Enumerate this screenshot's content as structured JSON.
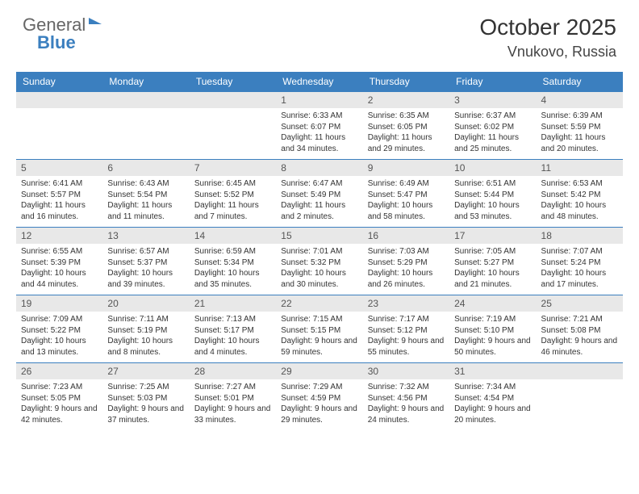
{
  "brand": {
    "part1": "General",
    "part2": "Blue"
  },
  "title": "October 2025",
  "location": "Vnukovo, Russia",
  "colors": {
    "header_bg": "#3b7fbf",
    "header_text": "#ffffff",
    "daynum_bg": "#e8e8e8",
    "row_divider": "#3b7fbf",
    "page_bg": "#ffffff",
    "body_text": "#333333"
  },
  "weekdays": [
    "Sunday",
    "Monday",
    "Tuesday",
    "Wednesday",
    "Thursday",
    "Friday",
    "Saturday"
  ],
  "grid": [
    [
      null,
      null,
      null,
      {
        "n": "1",
        "sunrise": "6:33 AM",
        "sunset": "6:07 PM",
        "daylight": "11 hours and 34 minutes."
      },
      {
        "n": "2",
        "sunrise": "6:35 AM",
        "sunset": "6:05 PM",
        "daylight": "11 hours and 29 minutes."
      },
      {
        "n": "3",
        "sunrise": "6:37 AM",
        "sunset": "6:02 PM",
        "daylight": "11 hours and 25 minutes."
      },
      {
        "n": "4",
        "sunrise": "6:39 AM",
        "sunset": "5:59 PM",
        "daylight": "11 hours and 20 minutes."
      }
    ],
    [
      {
        "n": "5",
        "sunrise": "6:41 AM",
        "sunset": "5:57 PM",
        "daylight": "11 hours and 16 minutes."
      },
      {
        "n": "6",
        "sunrise": "6:43 AM",
        "sunset": "5:54 PM",
        "daylight": "11 hours and 11 minutes."
      },
      {
        "n": "7",
        "sunrise": "6:45 AM",
        "sunset": "5:52 PM",
        "daylight": "11 hours and 7 minutes."
      },
      {
        "n": "8",
        "sunrise": "6:47 AM",
        "sunset": "5:49 PM",
        "daylight": "11 hours and 2 minutes."
      },
      {
        "n": "9",
        "sunrise": "6:49 AM",
        "sunset": "5:47 PM",
        "daylight": "10 hours and 58 minutes."
      },
      {
        "n": "10",
        "sunrise": "6:51 AM",
        "sunset": "5:44 PM",
        "daylight": "10 hours and 53 minutes."
      },
      {
        "n": "11",
        "sunrise": "6:53 AM",
        "sunset": "5:42 PM",
        "daylight": "10 hours and 48 minutes."
      }
    ],
    [
      {
        "n": "12",
        "sunrise": "6:55 AM",
        "sunset": "5:39 PM",
        "daylight": "10 hours and 44 minutes."
      },
      {
        "n": "13",
        "sunrise": "6:57 AM",
        "sunset": "5:37 PM",
        "daylight": "10 hours and 39 minutes."
      },
      {
        "n": "14",
        "sunrise": "6:59 AM",
        "sunset": "5:34 PM",
        "daylight": "10 hours and 35 minutes."
      },
      {
        "n": "15",
        "sunrise": "7:01 AM",
        "sunset": "5:32 PM",
        "daylight": "10 hours and 30 minutes."
      },
      {
        "n": "16",
        "sunrise": "7:03 AM",
        "sunset": "5:29 PM",
        "daylight": "10 hours and 26 minutes."
      },
      {
        "n": "17",
        "sunrise": "7:05 AM",
        "sunset": "5:27 PM",
        "daylight": "10 hours and 21 minutes."
      },
      {
        "n": "18",
        "sunrise": "7:07 AM",
        "sunset": "5:24 PM",
        "daylight": "10 hours and 17 minutes."
      }
    ],
    [
      {
        "n": "19",
        "sunrise": "7:09 AM",
        "sunset": "5:22 PM",
        "daylight": "10 hours and 13 minutes."
      },
      {
        "n": "20",
        "sunrise": "7:11 AM",
        "sunset": "5:19 PM",
        "daylight": "10 hours and 8 minutes."
      },
      {
        "n": "21",
        "sunrise": "7:13 AM",
        "sunset": "5:17 PM",
        "daylight": "10 hours and 4 minutes."
      },
      {
        "n": "22",
        "sunrise": "7:15 AM",
        "sunset": "5:15 PM",
        "daylight": "9 hours and 59 minutes."
      },
      {
        "n": "23",
        "sunrise": "7:17 AM",
        "sunset": "5:12 PM",
        "daylight": "9 hours and 55 minutes."
      },
      {
        "n": "24",
        "sunrise": "7:19 AM",
        "sunset": "5:10 PM",
        "daylight": "9 hours and 50 minutes."
      },
      {
        "n": "25",
        "sunrise": "7:21 AM",
        "sunset": "5:08 PM",
        "daylight": "9 hours and 46 minutes."
      }
    ],
    [
      {
        "n": "26",
        "sunrise": "7:23 AM",
        "sunset": "5:05 PM",
        "daylight": "9 hours and 42 minutes."
      },
      {
        "n": "27",
        "sunrise": "7:25 AM",
        "sunset": "5:03 PM",
        "daylight": "9 hours and 37 minutes."
      },
      {
        "n": "28",
        "sunrise": "7:27 AM",
        "sunset": "5:01 PM",
        "daylight": "9 hours and 33 minutes."
      },
      {
        "n": "29",
        "sunrise": "7:29 AM",
        "sunset": "4:59 PM",
        "daylight": "9 hours and 29 minutes."
      },
      {
        "n": "30",
        "sunrise": "7:32 AM",
        "sunset": "4:56 PM",
        "daylight": "9 hours and 24 minutes."
      },
      {
        "n": "31",
        "sunrise": "7:34 AM",
        "sunset": "4:54 PM",
        "daylight": "9 hours and 20 minutes."
      },
      null
    ]
  ]
}
